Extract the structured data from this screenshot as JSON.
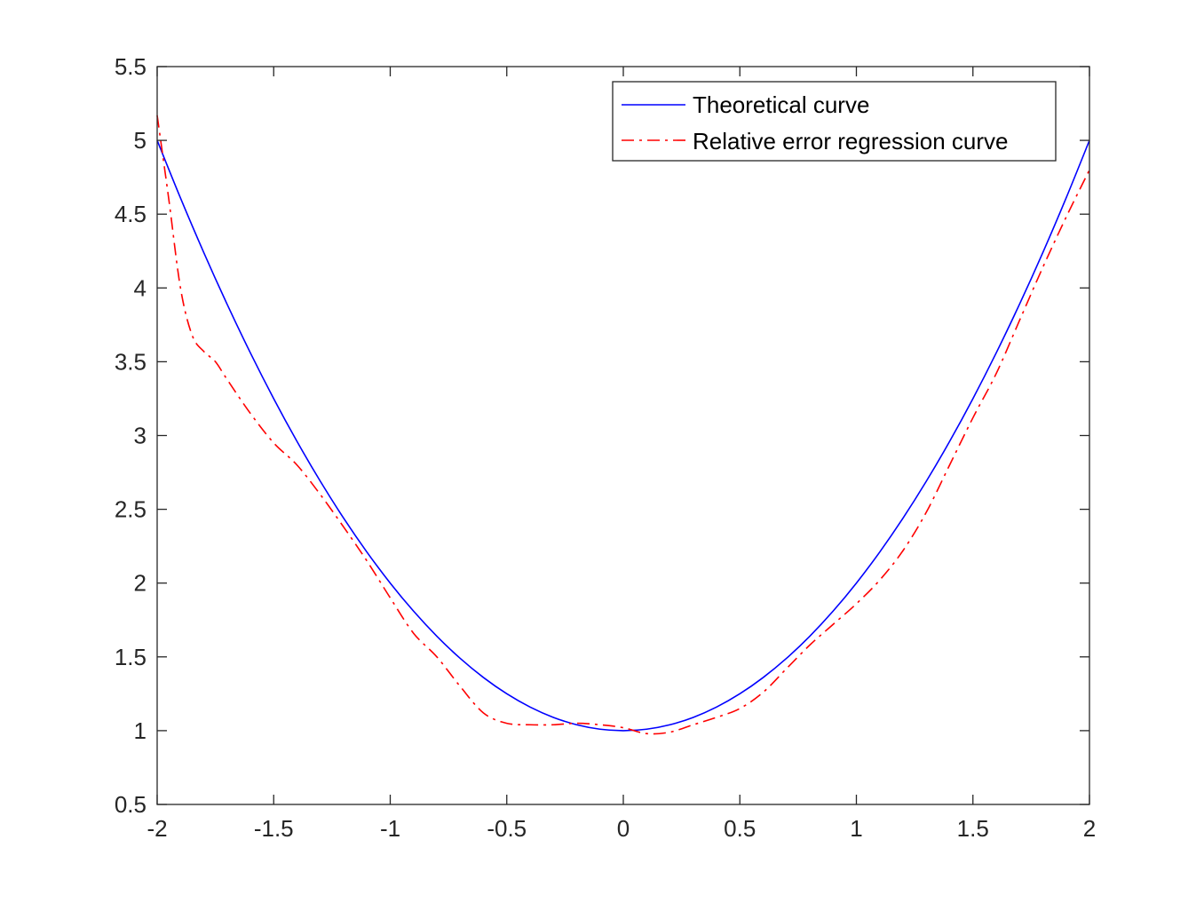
{
  "chart_data": {
    "type": "line",
    "title": "",
    "xlabel": "",
    "ylabel": "",
    "xlim": [
      -2,
      2
    ],
    "ylim": [
      0.5,
      5.5
    ],
    "xticks": [
      "-2",
      "-1.5",
      "-1",
      "-0.5",
      "0",
      "0.5",
      "1",
      "1.5",
      "2"
    ],
    "yticks": [
      "0.5",
      "1",
      "1.5",
      "2",
      "2.5",
      "3",
      "3.5",
      "4",
      "4.5",
      "5",
      "5.5"
    ],
    "grid": false,
    "legend_position": "top-right",
    "series": [
      {
        "name": "Theoretical curve",
        "color": "#0000ff",
        "style": "solid",
        "x": [
          -2.0,
          -1.9,
          -1.8,
          -1.7,
          -1.6,
          -1.5,
          -1.4,
          -1.3,
          -1.2,
          -1.1,
          -1.0,
          -0.9,
          -0.8,
          -0.7,
          -0.6,
          -0.5,
          -0.4,
          -0.3,
          -0.2,
          -0.1,
          0.0,
          0.1,
          0.2,
          0.3,
          0.4,
          0.5,
          0.6,
          0.7,
          0.8,
          0.9,
          1.0,
          1.1,
          1.2,
          1.3,
          1.4,
          1.5,
          1.6,
          1.7,
          1.8,
          1.9,
          2.0
        ],
        "y": [
          5.0,
          4.61,
          4.24,
          3.89,
          3.56,
          3.25,
          2.96,
          2.69,
          2.44,
          2.21,
          2.0,
          1.81,
          1.64,
          1.49,
          1.36,
          1.25,
          1.16,
          1.09,
          1.04,
          1.01,
          1.0,
          1.01,
          1.04,
          1.09,
          1.16,
          1.25,
          1.36,
          1.49,
          1.64,
          1.81,
          2.0,
          2.21,
          2.44,
          2.69,
          2.96,
          3.25,
          3.56,
          3.89,
          4.24,
          4.61,
          5.0
        ]
      },
      {
        "name": "Relative error regression curve",
        "color": "#ff0000",
        "style": "dash-dot",
        "x": [
          -2.0,
          -1.95,
          -1.9,
          -1.85,
          -1.8,
          -1.75,
          -1.7,
          -1.6,
          -1.5,
          -1.4,
          -1.3,
          -1.2,
          -1.1,
          -1.0,
          -0.9,
          -0.8,
          -0.7,
          -0.6,
          -0.5,
          -0.4,
          -0.3,
          -0.2,
          -0.1,
          0.0,
          0.1,
          0.2,
          0.3,
          0.4,
          0.5,
          0.6,
          0.7,
          0.8,
          0.9,
          1.0,
          1.1,
          1.2,
          1.3,
          1.4,
          1.5,
          1.6,
          1.7,
          1.8,
          1.9,
          2.0
        ],
        "y": [
          5.17,
          4.6,
          4.0,
          3.68,
          3.57,
          3.5,
          3.38,
          3.15,
          2.95,
          2.8,
          2.6,
          2.38,
          2.15,
          1.9,
          1.66,
          1.5,
          1.3,
          1.12,
          1.05,
          1.04,
          1.04,
          1.05,
          1.04,
          1.02,
          0.98,
          0.99,
          1.04,
          1.09,
          1.15,
          1.26,
          1.42,
          1.58,
          1.72,
          1.86,
          2.02,
          2.22,
          2.48,
          2.8,
          3.12,
          3.42,
          3.78,
          4.14,
          4.48,
          4.8
        ]
      }
    ]
  }
}
